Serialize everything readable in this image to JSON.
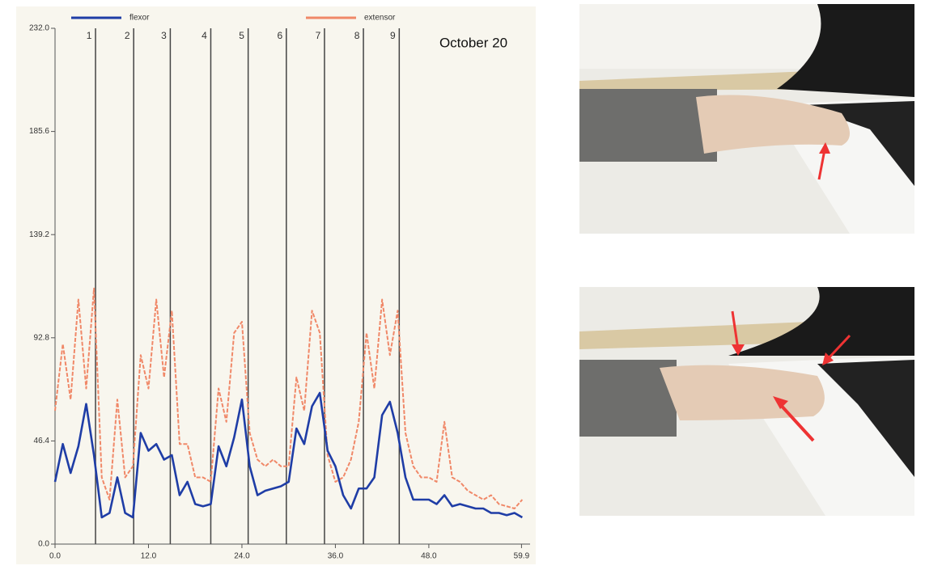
{
  "chart_data": {
    "type": "line",
    "annotation": "October 20",
    "x": [
      0,
      1,
      2,
      3,
      4,
      5,
      6,
      7,
      8,
      9,
      10,
      11,
      12,
      13,
      14,
      15,
      16,
      17,
      18,
      19,
      20,
      21,
      22,
      23,
      24,
      25,
      26,
      27,
      28,
      29,
      30,
      31,
      32,
      33,
      34,
      35,
      36,
      37,
      38,
      39,
      40,
      41,
      42,
      43,
      44,
      45,
      46,
      47,
      48,
      49,
      50,
      51,
      52,
      53,
      54,
      55,
      56,
      57,
      58,
      59,
      60
    ],
    "series": [
      {
        "name": "flexor",
        "color": "#1f3da6",
        "values": [
          28,
          45,
          32,
          44,
          63,
          40,
          12,
          14,
          30,
          14,
          12,
          50,
          42,
          45,
          38,
          40,
          22,
          28,
          18,
          17,
          18,
          44,
          35,
          48,
          65,
          35,
          22,
          24,
          25,
          26,
          28,
          52,
          45,
          62,
          68,
          42,
          35,
          22,
          16,
          25,
          25,
          30,
          58,
          64,
          50,
          30,
          20,
          20,
          20,
          18,
          22,
          17,
          18,
          17,
          16,
          16,
          14,
          14,
          13,
          14,
          12
        ]
      },
      {
        "name": "extensor",
        "color": "#f08868",
        "values": [
          60,
          90,
          65,
          110,
          70,
          115,
          30,
          20,
          65,
          30,
          35,
          85,
          70,
          110,
          75,
          105,
          45,
          45,
          30,
          30,
          28,
          70,
          55,
          95,
          100,
          50,
          38,
          35,
          38,
          35,
          35,
          75,
          60,
          105,
          95,
          40,
          28,
          30,
          38,
          55,
          95,
          70,
          110,
          85,
          105,
          50,
          35,
          30,
          30,
          28,
          55,
          30,
          28,
          24,
          22,
          20,
          22,
          18,
          17,
          16,
          20
        ]
      }
    ],
    "markers": [
      {
        "label": "1",
        "x": 5.2
      },
      {
        "label": "2",
        "x": 10.1
      },
      {
        "label": "3",
        "x": 14.8
      },
      {
        "label": "4",
        "x": 20
      },
      {
        "label": "5",
        "x": 24.8
      },
      {
        "label": "6",
        "x": 29.7
      },
      {
        "label": "7",
        "x": 34.6
      },
      {
        "label": "8",
        "x": 39.6
      },
      {
        "label": "9",
        "x": 44.2
      }
    ],
    "xlim": [
      0,
      61
    ],
    "xticks": [
      {
        "value": 0,
        "label": "0.0"
      },
      {
        "value": 12,
        "label": "12.0"
      },
      {
        "value": 24,
        "label": "24.0"
      },
      {
        "value": 36,
        "label": "36.0"
      },
      {
        "value": 48,
        "label": "48.0"
      },
      {
        "value": 59.9,
        "label": "59.9"
      }
    ],
    "ylim": [
      0,
      232
    ],
    "yticks": [
      {
        "value": 0,
        "label": "0.0"
      },
      {
        "value": 46.4,
        "label": "46.4"
      },
      {
        "value": 92.8,
        "label": "92.8"
      },
      {
        "value": 139.2,
        "label": "139.2"
      },
      {
        "value": 185.6,
        "label": "185.6"
      },
      {
        "value": 232,
        "label": "232.0"
      }
    ]
  }
}
